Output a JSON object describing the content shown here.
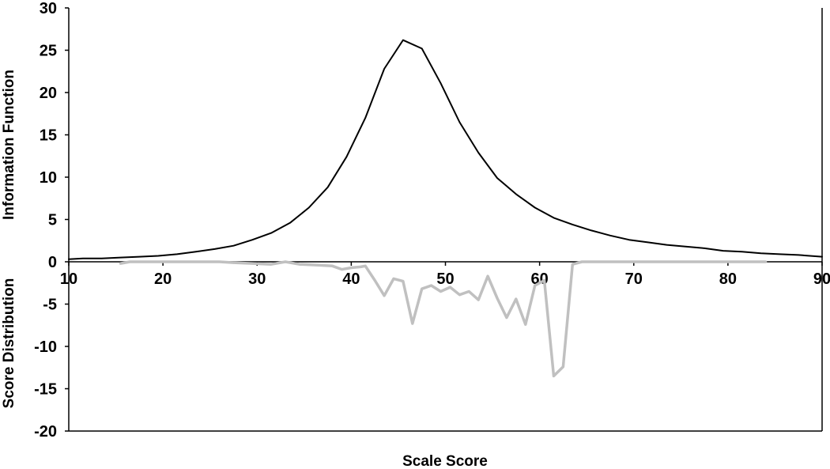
{
  "chart_data": {
    "type": "line",
    "xlabel": "Scale Score",
    "ylabel_top": "Information Function",
    "ylabel_bottom": "Score Distribution",
    "xlim": [
      10,
      90
    ],
    "ylim": [
      -20,
      30
    ],
    "x_ticks": [
      10,
      20,
      30,
      40,
      50,
      60,
      70,
      80,
      90
    ],
    "y_ticks": [
      30,
      25,
      20,
      15,
      10,
      5,
      0,
      -5,
      -10,
      -15,
      -20
    ],
    "grid": false,
    "legend": "none",
    "series": [
      {
        "color": "#000000",
        "points": [
          [
            10,
            0.3
          ],
          [
            11.5,
            0.4
          ],
          [
            13.5,
            0.4
          ],
          [
            15.5,
            0.5
          ],
          [
            17.5,
            0.6
          ],
          [
            19.5,
            0.7
          ],
          [
            21.5,
            0.9
          ],
          [
            23.5,
            1.2
          ],
          [
            25.5,
            1.5
          ],
          [
            27.5,
            1.9
          ],
          [
            29.5,
            2.6
          ],
          [
            31.5,
            3.4
          ],
          [
            33.5,
            4.6
          ],
          [
            35.5,
            6.4
          ],
          [
            37.5,
            8.8
          ],
          [
            39.5,
            12.4
          ],
          [
            41.5,
            17.0
          ],
          [
            43.5,
            22.8
          ],
          [
            45.5,
            26.2
          ],
          [
            47.5,
            25.2
          ],
          [
            49.5,
            21.1
          ],
          [
            51.5,
            16.5
          ],
          [
            53.5,
            12.9
          ],
          [
            55.5,
            9.9
          ],
          [
            57.5,
            8.0
          ],
          [
            59.5,
            6.4
          ],
          [
            61.5,
            5.2
          ],
          [
            63.5,
            4.4
          ],
          [
            65.5,
            3.7
          ],
          [
            67.5,
            3.1
          ],
          [
            69.5,
            2.6
          ],
          [
            71.5,
            2.3
          ],
          [
            73.5,
            2.0
          ],
          [
            75.5,
            1.8
          ],
          [
            77.5,
            1.6
          ],
          [
            79.5,
            1.3
          ],
          [
            81.5,
            1.2
          ],
          [
            83.5,
            1.0
          ],
          [
            85.5,
            0.9
          ],
          [
            87.5,
            0.8
          ],
          [
            90,
            0.6
          ]
        ]
      },
      {
        "color": "#c0c0c0",
        "points": [
          [
            15.5,
            -0.2
          ],
          [
            16.5,
            0
          ],
          [
            18,
            0
          ],
          [
            20,
            0
          ],
          [
            22,
            0
          ],
          [
            24,
            0
          ],
          [
            26,
            0
          ],
          [
            27.5,
            -0.1
          ],
          [
            29.5,
            -0.2
          ],
          [
            31.5,
            -0.3
          ],
          [
            33,
            0
          ],
          [
            34.5,
            -0.3
          ],
          [
            36.5,
            -0.4
          ],
          [
            38,
            -0.5
          ],
          [
            39,
            -0.9
          ],
          [
            40,
            -0.7
          ],
          [
            41,
            -0.6
          ],
          [
            41.5,
            -0.5
          ],
          [
            42.5,
            -2.2
          ],
          [
            43.5,
            -4.0
          ],
          [
            44.5,
            -2.0
          ],
          [
            45.5,
            -2.3
          ],
          [
            46.5,
            -7.3
          ],
          [
            47.5,
            -3.2
          ],
          [
            48.5,
            -2.8
          ],
          [
            49.5,
            -3.5
          ],
          [
            50.5,
            -3.0
          ],
          [
            51.5,
            -3.9
          ],
          [
            52.5,
            -3.5
          ],
          [
            53.5,
            -4.5
          ],
          [
            54.5,
            -1.7
          ],
          [
            55.5,
            -4.3
          ],
          [
            56.5,
            -6.6
          ],
          [
            57.5,
            -4.4
          ],
          [
            58.5,
            -7.4
          ],
          [
            59.5,
            -2.8
          ],
          [
            60.5,
            -2.2
          ],
          [
            61.5,
            -13.5
          ],
          [
            62.5,
            -12.4
          ],
          [
            63.5,
            -0.3
          ],
          [
            64.5,
            0
          ],
          [
            66,
            0
          ],
          [
            70,
            0
          ],
          [
            75,
            0
          ],
          [
            80,
            0
          ],
          [
            84,
            0
          ]
        ]
      }
    ]
  }
}
